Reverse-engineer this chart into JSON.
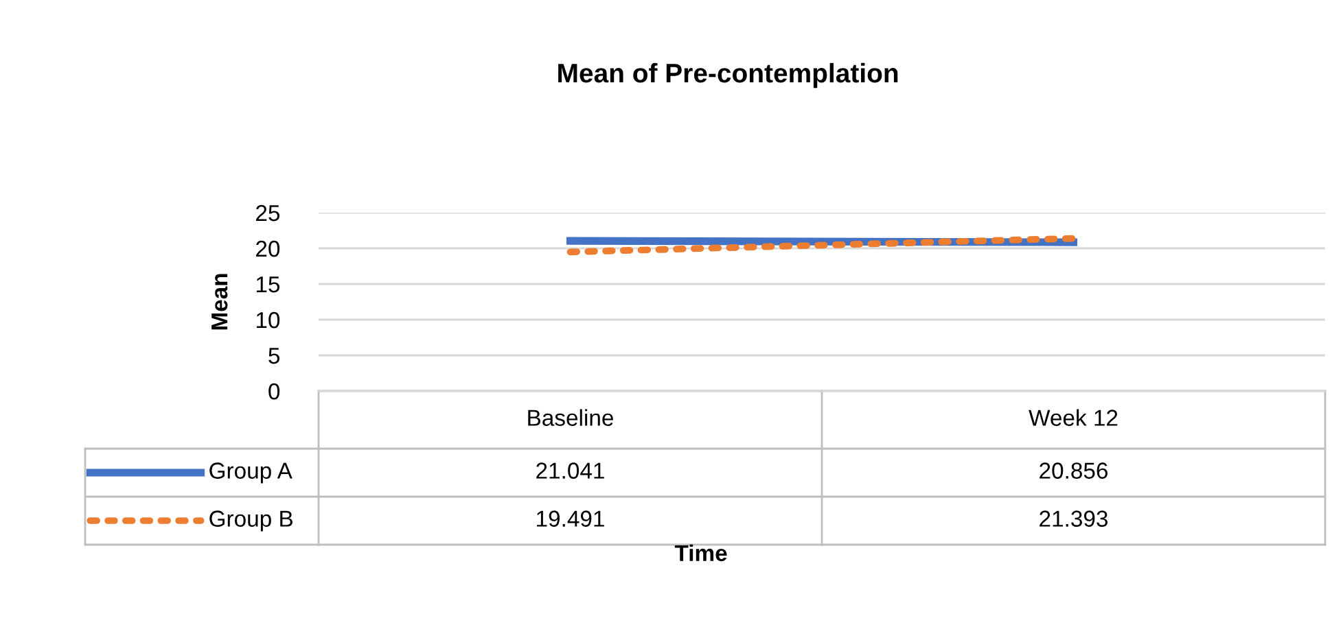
{
  "chart_data": {
    "type": "line",
    "title": "Mean of Pre-contemplation",
    "annotations": [
      "Time"
    ],
    "ylabel": "Mean",
    "categories": [
      "Baseline",
      "Week 12"
    ],
    "series": [
      {
        "name": "Group A",
        "color": "#4472c4",
        "values": [
          21.041,
          20.856
        ],
        "line_style": "solid"
      },
      {
        "name": "Group B",
        "color": "#ed7d31",
        "values": [
          19.491,
          21.393
        ],
        "line_style": "dotted"
      }
    ],
    "ylim": [
      0,
      25
    ],
    "yticks": [
      0,
      5,
      10,
      15,
      20,
      25
    ],
    "grid": "y",
    "legend": "bottom",
    "data_labels": true,
    "marker": "none"
  }
}
